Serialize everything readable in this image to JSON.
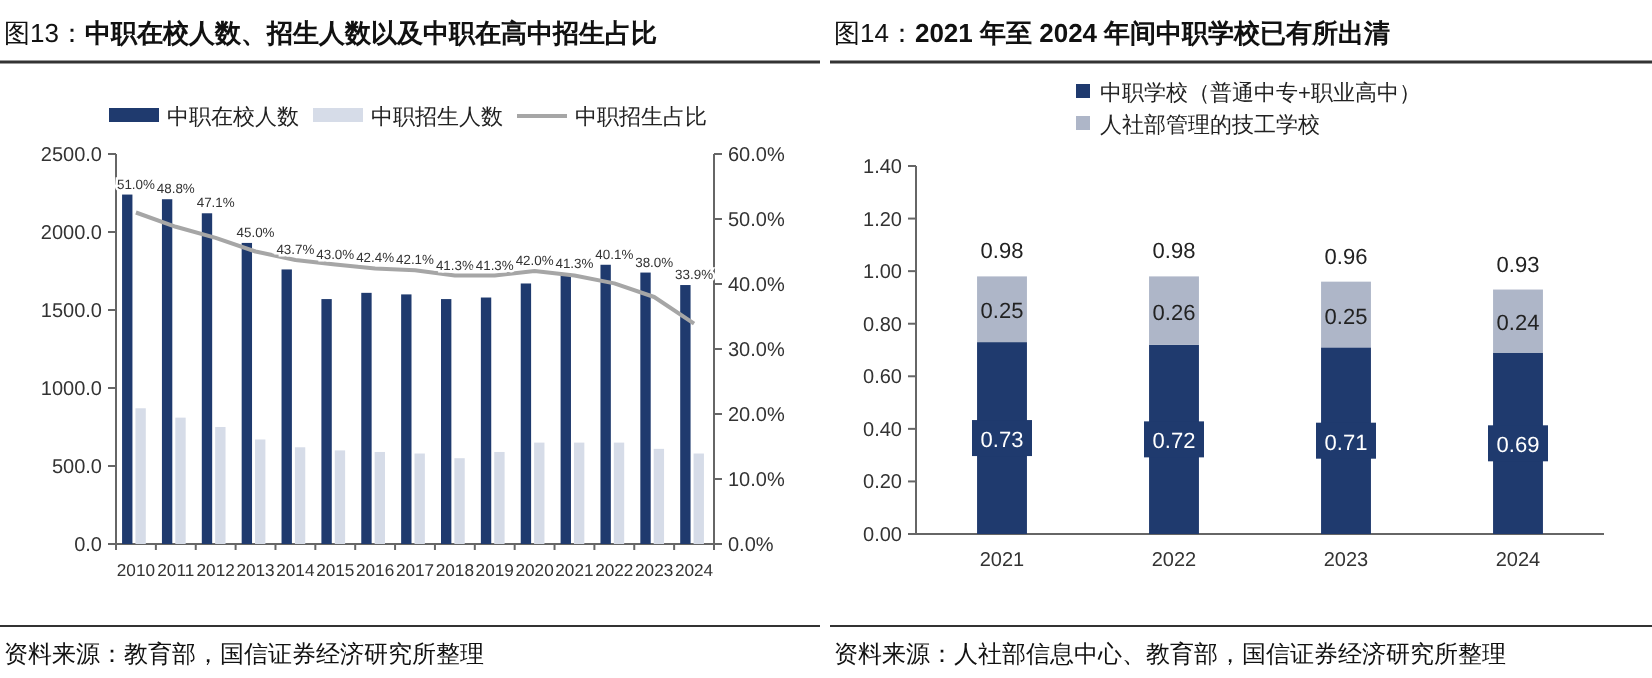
{
  "chart_data": [
    {
      "type": "bar",
      "title": "图13：**中职在校人数、招生人数以及中职在高中招生占比**",
      "categories": [
        "2010",
        "2011",
        "2012",
        "2013",
        "2014",
        "2015",
        "2016",
        "2017",
        "2018",
        "2019",
        "2020",
        "2021",
        "2022",
        "2023",
        "2024"
      ],
      "series": [
        {
          "name": "中职在校人数",
          "color": "#1f3a6e",
          "values": [
            2240,
            2210,
            2120,
            1930,
            1760,
            1570,
            1610,
            1600,
            1570,
            1580,
            1670,
            1730,
            1790,
            1740,
            1660
          ]
        },
        {
          "name": "中职招生人数",
          "color": "#d6dce8",
          "values": [
            870,
            810,
            750,
            670,
            620,
            600,
            590,
            580,
            550,
            590,
            650,
            650,
            650,
            610,
            580
          ]
        },
        {
          "name": "中职招生占比",
          "type": "line",
          "axis": "y2",
          "color": "#a6a6a6",
          "values": [
            51.0,
            48.8,
            47.1,
            45.0,
            43.7,
            43.0,
            42.4,
            42.1,
            41.3,
            41.3,
            42.0,
            41.3,
            40.1,
            38.0,
            33.9
          ],
          "value_labels": [
            "51.0%",
            "48.8%",
            "47.1%",
            "45.0%",
            "43.7%",
            "43.0%",
            "42.4%",
            "42.1%",
            "41.3%",
            "41.3%",
            "42.0%",
            "41.3%",
            "40.1%",
            "38.0%",
            "33.9%"
          ]
        }
      ],
      "ylim": [
        0,
        2500
      ],
      "yticks": [
        {
          "value": 0,
          "label": "0.0"
        },
        {
          "value": 500,
          "label": "500.0"
        },
        {
          "value": 1000,
          "label": "1000.0"
        },
        {
          "value": 1500,
          "label": "1500.0"
        },
        {
          "value": 2000,
          "label": "2000.0"
        },
        {
          "value": 2500,
          "label": "2500.0"
        }
      ],
      "y2lim": [
        0,
        60
      ],
      "y2ticks": [
        {
          "value": 0,
          "label": "0.0%"
        },
        {
          "value": 10,
          "label": "10.0%"
        },
        {
          "value": 20,
          "label": "20.0%"
        },
        {
          "value": 30,
          "label": "30.0%"
        },
        {
          "value": 40,
          "label": "40.0%"
        },
        {
          "value": 50,
          "label": "50.0%"
        },
        {
          "value": 60,
          "label": "60.0%"
        }
      ],
      "legend": "top",
      "annotations": [
        "资料来源：教育部，国信证券经济研究所整理"
      ]
    },
    {
      "type": "bar",
      "stacked": true,
      "title": "图14：**2021 年至 2024 年间中职学校已有所出清**",
      "categories": [
        "2021",
        "2022",
        "2023",
        "2024"
      ],
      "series": [
        {
          "name": "中职学校（普通中专+职业高中）",
          "color": "#1f3a6e",
          "values": [
            0.73,
            0.72,
            0.71,
            0.69
          ]
        },
        {
          "name": "人社部管理的技工学校",
          "color": "#aeb6c8",
          "values": [
            0.25,
            0.26,
            0.25,
            0.24
          ]
        }
      ],
      "data_labels": true,
      "totals": [
        "0.98",
        "0.98",
        "0.96",
        "0.93"
      ],
      "ylim": [
        0,
        1.4
      ],
      "yticks": [
        {
          "value": 0,
          "label": "0.00"
        },
        {
          "value": 0.2,
          "label": "0.20"
        },
        {
          "value": 0.4,
          "label": "0.40"
        },
        {
          "value": 0.6,
          "label": "0.60"
        },
        {
          "value": 0.8,
          "label": "0.80"
        },
        {
          "value": 1.0,
          "label": "1.00"
        },
        {
          "value": 1.2,
          "label": "1.20"
        },
        {
          "value": 1.4,
          "label": "1.40"
        }
      ],
      "legend": "top left",
      "annotations": [
        "资料来源：人社部信息中心、教育部，国信证券经济研究所整理"
      ]
    }
  ]
}
